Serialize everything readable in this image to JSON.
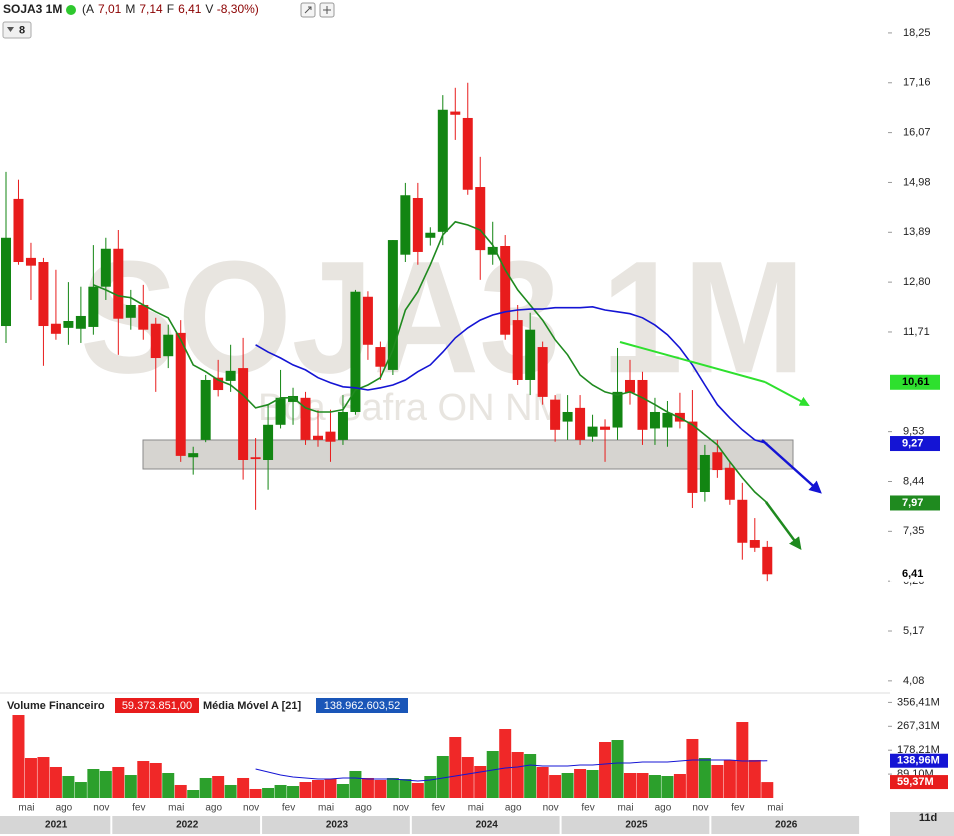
{
  "header": {
    "symbol": "SOJA3 1M",
    "quote": [
      "(A",
      "7,01",
      "M",
      "7,14",
      "F",
      "6,41",
      "V",
      "-8,30%)"
    ],
    "badge": "8"
  },
  "watermark": {
    "main": "SOJA3 1M",
    "sub": "Boa Safra ON NM"
  },
  "footer": {
    "interval": "11d"
  },
  "chart_data": [
    {
      "type": "candlestick",
      "up_color": "#128512",
      "down_color": "#e81c1c",
      "open": [
        11.84,
        14.62,
        13.33,
        13.24,
        11.89,
        11.8,
        11.78,
        11.82,
        12.7,
        13.53,
        12.02,
        12.3,
        11.89,
        11.18,
        11.69,
        8.97,
        9.35,
        10.71,
        10.64,
        10.92,
        8.97,
        8.91,
        9.68,
        10.18,
        10.27,
        9.44,
        9.53,
        9.35,
        9.96,
        12.48,
        11.38,
        10.88,
        13.4,
        14.64,
        13.77,
        13.9,
        16.53,
        16.39,
        14.88,
        13.4,
        13.59,
        11.97,
        10.66,
        11.38,
        10.23,
        9.75,
        10.05,
        9.42,
        9.64,
        9.62,
        10.66,
        10.66,
        9.6,
        9.62,
        9.94,
        9.75,
        8.21,
        9.08,
        8.74,
        8.04,
        7.16,
        7.01
      ],
      "high": [
        15.21,
        15.04,
        13.66,
        13.33,
        13.07,
        12.8,
        12.7,
        13.61,
        13.77,
        13.94,
        12.63,
        12.74,
        12.02,
        11.87,
        11.97,
        9.2,
        10.77,
        11.1,
        11.43,
        11.58,
        9.39,
        10.12,
        10.88,
        10.49,
        10.4,
        10.0,
        10.01,
        10.33,
        12.63,
        12.6,
        11.5,
        13.72,
        14.97,
        14.97,
        14.0,
        16.89,
        17.05,
        17.16,
        15.54,
        14.12,
        13.83,
        12.3,
        12.13,
        11.5,
        10.33,
        10.33,
        10.33,
        9.9,
        9.8,
        11.36,
        11.1,
        10.84,
        10.27,
        10.2,
        10.38,
        10.44,
        9.24,
        9.35,
        8.87,
        8.41,
        7.64,
        7.14
      ],
      "low": [
        11.47,
        13.18,
        12.41,
        10.97,
        11.54,
        11.43,
        11.47,
        11.65,
        12.41,
        11.21,
        11.76,
        11.54,
        10.4,
        10.92,
        8.87,
        8.59,
        9.3,
        10.3,
        10.4,
        8.48,
        7.82,
        8.26,
        9.6,
        9.68,
        9.24,
        9.2,
        8.87,
        9.24,
        9.9,
        11.1,
        10.66,
        10.77,
        13.24,
        13.18,
        13.6,
        13.61,
        15.91,
        14.71,
        12.85,
        13.18,
        11.54,
        10.55,
        10.33,
        10.12,
        9.31,
        9.35,
        9.24,
        9.31,
        8.87,
        9.35,
        10.12,
        9.24,
        9.24,
        9.2,
        9.6,
        7.86,
        8.0,
        8.52,
        7.93,
        6.73,
        6.9,
        6.26
      ],
      "close": [
        13.77,
        13.24,
        13.16,
        11.84,
        11.67,
        11.95,
        12.06,
        12.7,
        13.53,
        12.0,
        12.3,
        11.76,
        11.14,
        11.65,
        9.0,
        9.06,
        10.66,
        10.44,
        10.86,
        8.91,
        8.93,
        9.68,
        10.27,
        10.31,
        9.35,
        9.35,
        9.31,
        9.96,
        12.59,
        11.43,
        10.95,
        13.72,
        14.7,
        13.46,
        13.88,
        16.57,
        16.46,
        14.82,
        13.5,
        13.57,
        11.65,
        10.66,
        11.76,
        10.29,
        9.57,
        9.96,
        9.35,
        9.64,
        9.57,
        10.4,
        10.38,
        9.57,
        9.96,
        9.94,
        9.75,
        8.19,
        9.02,
        8.69,
        8.04,
        7.1,
        6.99,
        6.41
      ],
      "lines": [
        {
          "color": "#1f8a1f",
          "values": [
            null,
            null,
            null,
            null,
            null,
            null,
            null,
            12.74,
            12.63,
            12.5,
            12.46,
            12.3,
            12.15,
            12.02,
            11.54,
            10.99,
            10.84,
            10.66,
            10.55,
            10.33,
            10.05,
            10.12,
            10.27,
            10.27,
            10.05,
            9.96,
            9.96,
            10.01,
            10.44,
            10.55,
            10.71,
            11.32,
            12.19,
            12.59,
            13.18,
            13.83,
            14.12,
            14.05,
            13.94,
            13.61,
            13.07,
            12.63,
            12.3,
            11.97,
            11.54,
            11.21,
            10.77,
            10.55,
            10.4,
            10.33,
            10.4,
            10.27,
            10.12,
            9.96,
            9.83,
            9.68,
            9.46,
            9.24,
            8.87,
            8.52,
            8.21,
            7.97
          ]
        },
        {
          "color": "#1414d4",
          "values": [
            null,
            null,
            null,
            null,
            null,
            null,
            null,
            null,
            null,
            null,
            null,
            null,
            null,
            null,
            null,
            null,
            null,
            null,
            null,
            null,
            11.43,
            11.27,
            11.14,
            10.99,
            10.88,
            10.71,
            10.6,
            10.51,
            10.49,
            10.44,
            10.49,
            10.55,
            10.66,
            10.84,
            10.99,
            11.27,
            11.58,
            11.8,
            11.97,
            12.08,
            12.15,
            12.19,
            12.21,
            12.21,
            12.24,
            12.24,
            12.24,
            12.26,
            12.19,
            12.15,
            12.11,
            12.02,
            11.86,
            11.65,
            11.36,
            10.99,
            10.55,
            10.12,
            9.83,
            9.57,
            9.35,
            9.27
          ]
        }
      ],
      "ylim": [
        3.88,
        18.97
      ],
      "yticks": [
        {
          "value": 18.25,
          "label": "18,25"
        },
        {
          "value": 17.16,
          "label": "17,16"
        },
        {
          "value": 16.07,
          "label": "16,07"
        },
        {
          "value": 14.98,
          "label": "14,98"
        },
        {
          "value": 13.89,
          "label": "13,89"
        },
        {
          "value": 12.8,
          "label": "12,80"
        },
        {
          "value": 11.71,
          "label": "11,71"
        },
        {
          "value": 9.53,
          "label": "9,53"
        },
        {
          "value": 8.44,
          "label": "8,44"
        },
        {
          "value": 7.35,
          "label": "7,35"
        },
        {
          "value": 6.26,
          "label": "6,26"
        },
        {
          "value": 5.17,
          "label": "5,17"
        },
        {
          "value": 4.08,
          "label": "4,08"
        }
      ],
      "tags": [
        {
          "value": 10.61,
          "label": "10,61",
          "color": "#2ee02e",
          "text_color": "#000000"
        },
        {
          "value": 9.27,
          "label": "9,27",
          "color": "#1414d4",
          "text_color": "#ffffff"
        },
        {
          "value": 7.97,
          "label": "7,97",
          "color": "#1f8a1f",
          "text_color": "#ffffff"
        },
        {
          "value": 6.41,
          "label": "6,41",
          "color": "#ffffff",
          "text_color": "#000000"
        }
      ]
    },
    {
      "type": "bar",
      "title": "Volume Financeiro",
      "value_text": "59.373.851,00",
      "ma_title": "Média Móvel A [21]",
      "ma_text": "138.962.603,52",
      "values": [
        null,
        309.4,
        149.1,
        152.8,
        115.6,
        82.0,
        59.6,
        108.1,
        100.7,
        115.6,
        85.7,
        137.9,
        130.5,
        93.2,
        48.5,
        29.8,
        74.6,
        82.0,
        48.5,
        74.6,
        33.6,
        37.3,
        48.5,
        44.7,
        59.6,
        67.1,
        70.8,
        52.2,
        100.7,
        74.6,
        67.1,
        74.6,
        70.8,
        55.9,
        82.0,
        156.6,
        227.4,
        152.8,
        119.3,
        175.2,
        257.2,
        171.5,
        164.0,
        115.6,
        85.7,
        93.2,
        108.1,
        104.4,
        208.8,
        216.2,
        93.2,
        93.2,
        85.7,
        82.0,
        89.5,
        220.0,
        149.1,
        123.0,
        141.7,
        283.3,
        141.7,
        59.37
      ],
      "ma": {
        "color": "#1414d4",
        "values": [
          null,
          null,
          null,
          null,
          null,
          null,
          null,
          null,
          null,
          null,
          null,
          null,
          null,
          null,
          null,
          null,
          null,
          null,
          null,
          null,
          108.1,
          96.9,
          85.7,
          78.3,
          74.6,
          70.8,
          70.8,
          74.6,
          74.6,
          70.8,
          70.8,
          70.8,
          67.1,
          63.4,
          67.1,
          74.6,
          82.0,
          89.5,
          96.9,
          104.4,
          111.8,
          115.6,
          123.0,
          119.3,
          119.3,
          119.3,
          123.0,
          123.0,
          126.8,
          130.5,
          130.5,
          134.2,
          134.2,
          134.2,
          137.9,
          141.7,
          141.7,
          141.7,
          141.7,
          137.9,
          137.9,
          138.96
        ]
      },
      "ylim": [
        0,
        384
      ],
      "yticks": [
        {
          "value": 356.41,
          "label": "356,41M"
        },
        {
          "value": 267.31,
          "label": "267,31M"
        },
        {
          "value": 178.21,
          "label": "178,21M"
        },
        {
          "value": 89.1,
          "label": "89,10M"
        }
      ],
      "tags": [
        {
          "value": 138.96,
          "label": "138,96M",
          "color": "#1414d4"
        },
        {
          "value": 59.37,
          "label": "59,37M",
          "color": "#e81c1c"
        }
      ],
      "x_labels": [
        "mai",
        "ago",
        "nov",
        "fev",
        "mai",
        "ago",
        "nov",
        "fev",
        "mai",
        "ago",
        "nov",
        "fev",
        "mai",
        "ago",
        "nov",
        "fev",
        "mai",
        "ago",
        "nov",
        "fev",
        "mai"
      ],
      "years": [
        "2021",
        "2022",
        "2023",
        "2024",
        "2025",
        "2026"
      ]
    }
  ]
}
